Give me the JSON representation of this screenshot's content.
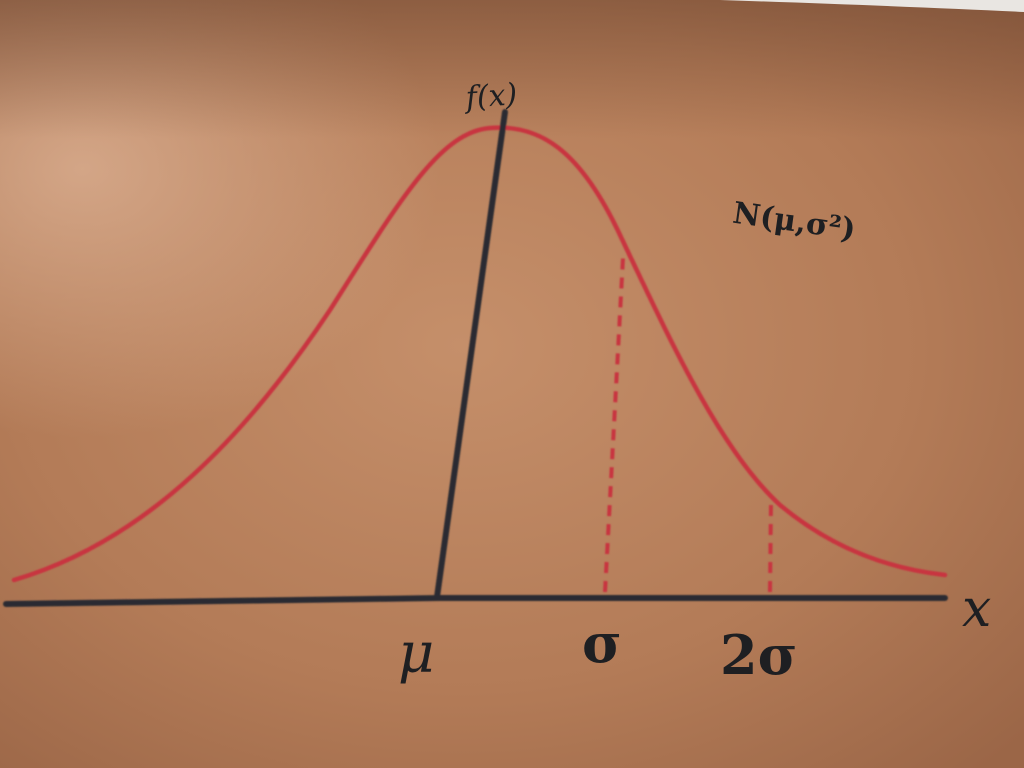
{
  "tattoo": {
    "axis_label_y": "f(x)",
    "axis_label_x": "x",
    "tick_labels": [
      "μ",
      "σ",
      "2σ"
    ],
    "formula": "N(μ,σ²)",
    "colors": {
      "skin": "#b47e5a",
      "skin_light": "#cc9a78",
      "skin_shadow": "#8a5a3c",
      "ink_black": "#2a2c30",
      "ink_red": "#c8343f"
    }
  }
}
